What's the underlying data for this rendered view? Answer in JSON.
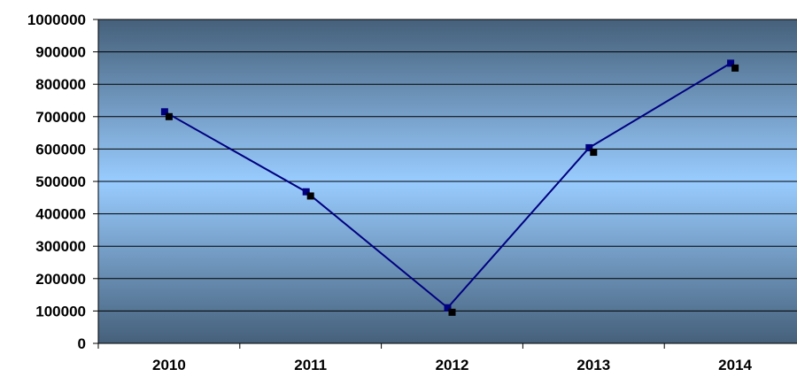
{
  "chart_data": {
    "type": "line",
    "title": "",
    "xlabel": "",
    "ylabel": "",
    "categories": [
      "2010",
      "2011",
      "2012",
      "2013",
      "2014"
    ],
    "ylim": [
      0,
      1000000
    ],
    "yticks": [
      "0",
      "100000",
      "200000",
      "300000",
      "400000",
      "500000",
      "600000",
      "700000",
      "800000",
      "900000",
      "1000000"
    ],
    "series": [
      {
        "values": [
          715000,
          468000,
          110000,
          604000,
          865000
        ],
        "color": "#000080",
        "marker": "square"
      },
      {
        "values": [
          700000,
          455000,
          96000,
          590000,
          850000
        ],
        "color": "#000000",
        "marker": "square",
        "line": false
      }
    ],
    "grid": true,
    "legend": "none",
    "background_gradient": [
      "#45607a",
      "#99ccff",
      "#45607a"
    ]
  }
}
